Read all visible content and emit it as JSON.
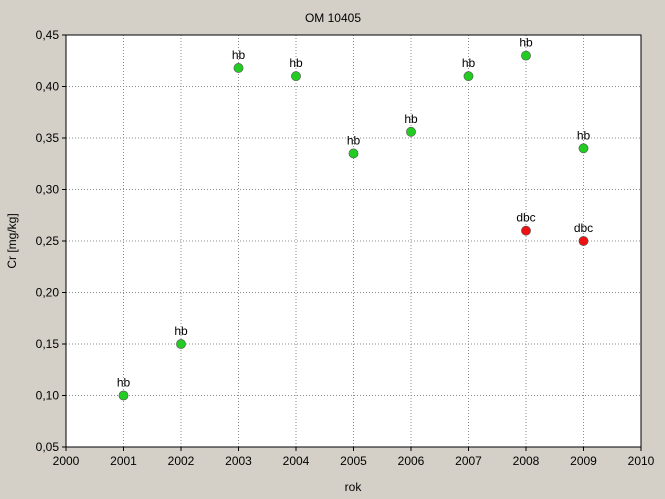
{
  "chart_data": {
    "type": "scatter",
    "title": "OM 10405",
    "xlabel": "rok",
    "ylabel": "Cr [mg/kg]",
    "xlim": [
      2000,
      2010
    ],
    "ylim": [
      0.05,
      0.45
    ],
    "x_ticks": [
      "2000",
      "2001",
      "2002",
      "2003",
      "2004",
      "2005",
      "2006",
      "2007",
      "2008",
      "2009",
      "2010"
    ],
    "y_ticks": [
      "0,05",
      "0,10",
      "0,15",
      "0,20",
      "0,25",
      "0,30",
      "0,35",
      "0,40",
      "0,45"
    ],
    "grid": true,
    "colors": {
      "hb": "#22cc22",
      "dbc": "#ee1111",
      "background": "#d4d0c8",
      "plot_area": "#ffffff"
    },
    "points": [
      {
        "x": 2001,
        "y": 0.1,
        "label": "hb"
      },
      {
        "x": 2002,
        "y": 0.15,
        "label": "hb"
      },
      {
        "x": 2003,
        "y": 0.418,
        "label": "hb"
      },
      {
        "x": 2004,
        "y": 0.41,
        "label": "hb"
      },
      {
        "x": 2005,
        "y": 0.335,
        "label": "hb"
      },
      {
        "x": 2006,
        "y": 0.356,
        "label": "hb"
      },
      {
        "x": 2007,
        "y": 0.41,
        "label": "hb"
      },
      {
        "x": 2008,
        "y": 0.43,
        "label": "hb"
      },
      {
        "x": 2008,
        "y": 0.26,
        "label": "dbc"
      },
      {
        "x": 2009,
        "y": 0.34,
        "label": "hb"
      },
      {
        "x": 2009,
        "y": 0.25,
        "label": "dbc"
      }
    ]
  }
}
